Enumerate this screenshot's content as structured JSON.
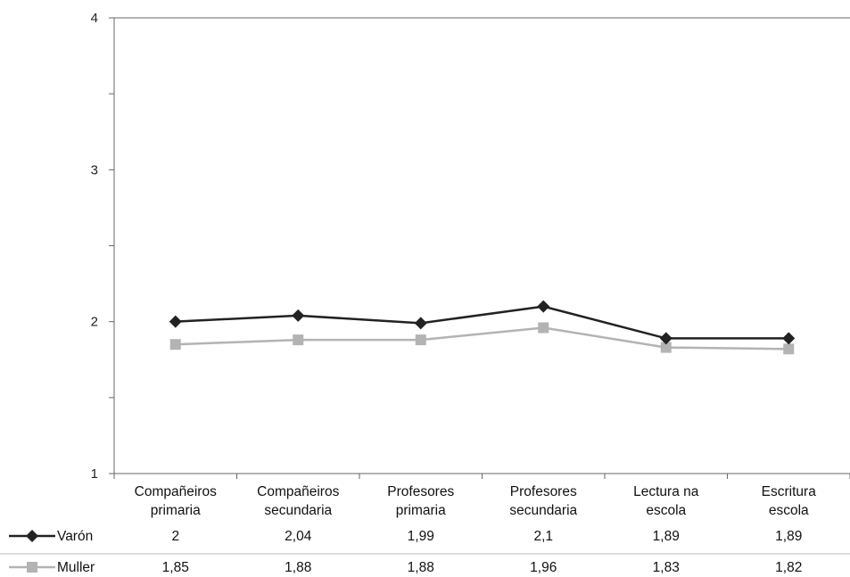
{
  "chart_data": {
    "type": "line",
    "categories": [
      [
        "Compañeiros",
        "primaria"
      ],
      [
        "Compañeiros",
        "secundaria"
      ],
      [
        "Profesores",
        "primaria"
      ],
      [
        "Profesores",
        "secundaria"
      ],
      [
        "Lectura na",
        "escola"
      ],
      [
        "Escritura",
        "escola"
      ]
    ],
    "ylim": [
      1,
      4
    ],
    "yticks": [
      1,
      2,
      3,
      4
    ],
    "grid": false,
    "legend": "data-table-left",
    "series": [
      {
        "name": "Varón",
        "values": [
          2,
          2.04,
          1.99,
          2.1,
          1.89,
          1.89
        ],
        "labels": [
          "2",
          "2,04",
          "1,99",
          "2,1",
          "1,89",
          "1,89"
        ],
        "color": "#222222",
        "marker": "diamond"
      },
      {
        "name": "Muller",
        "values": [
          1.85,
          1.88,
          1.88,
          1.96,
          1.83,
          1.82
        ],
        "labels": [
          "1,85",
          "1,88",
          "1,88",
          "1,96",
          "1,83",
          "1,82"
        ],
        "color": "#b3b3b3",
        "marker": "square"
      }
    ]
  }
}
